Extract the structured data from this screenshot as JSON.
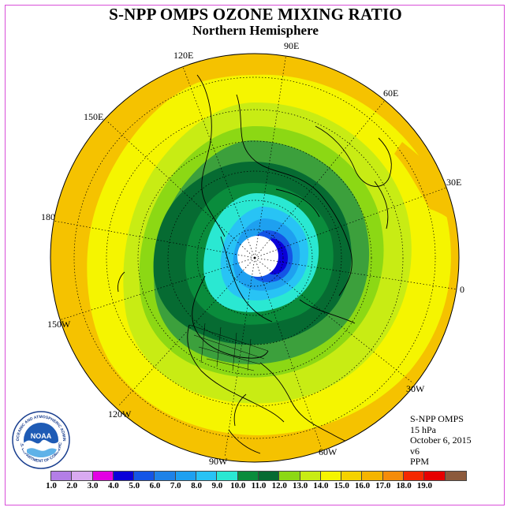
{
  "title": "S-NPP OMPS OZONE MIXING RATIO",
  "subtitle": "Northern Hemisphere",
  "longitude_labels": {
    "lon_90e": "90E",
    "lon_120e": "120E",
    "lon_60e": "60E",
    "lon_150e": "150E",
    "lon_30e": "30E",
    "lon_180": "180",
    "lon_0": "0",
    "lon_150w": "150W",
    "lon_30w": "30W",
    "lon_120w": "120W",
    "lon_60w": "60W",
    "lon_90w": "90W"
  },
  "info": {
    "instrument": "S-NPP OMPS",
    "level": "15 hPa",
    "date": "October 6, 2015",
    "version": "v6",
    "units": "PPM"
  },
  "logo": {
    "text": "NOAA",
    "ring_text": "NATIONAL OCEANIC AND ATMOSPHERIC ADMINISTRATION",
    "ring_text_bottom": "U.S. DEPARTMENT OF COMMERCE"
  },
  "colorbar": {
    "ticks": [
      "1.0",
      "2.0",
      "3.0",
      "4.0",
      "5.0",
      "6.0",
      "7.0",
      "8.0",
      "9.0",
      "10.0",
      "11.0",
      "12.0",
      "13.0",
      "14.0",
      "15.0",
      "16.0",
      "17.0",
      "18.0",
      "19.0"
    ],
    "colors": [
      "#b37ee6",
      "#d8aaf0",
      "#e300e3",
      "#0a00d9",
      "#1455e6",
      "#1e82e8",
      "#1ea0f0",
      "#28c3f5",
      "#2ae8d2",
      "#0a8c3c",
      "#066b32",
      "#8cd814",
      "#c8ec14",
      "#f5f500",
      "#f5d200",
      "#f5b400",
      "#f58c0a",
      "#f52800",
      "#e60000",
      "#8c5a3c"
    ]
  },
  "map": {
    "projection": "north polar stereographic",
    "field": "ozone mixing ratio",
    "levels_ppm": [
      {
        "level": "14.0-15.0",
        "color": "#f5c800"
      },
      {
        "level": "13.0-14.0",
        "color": "#f5f500"
      },
      {
        "level": "12.0-13.0",
        "color": "#c8ec14"
      },
      {
        "level": "11.0-12.0",
        "color": "#8cd814"
      },
      {
        "level": "10.0-11.0",
        "color": "#066b32"
      },
      {
        "level": "9.0-10.0",
        "color": "#0a8c3c"
      },
      {
        "level": "8.0-9.0",
        "color": "#2ae8d2"
      },
      {
        "level": "7.0-8.0",
        "color": "#28c3f5"
      },
      {
        "level": "6.0-7.0",
        "color": "#1ea0f0"
      },
      {
        "level": "5.0-6.0",
        "color": "#1455e6"
      },
      {
        "level": "4.0-5.0",
        "color": "#0a00d9"
      }
    ]
  }
}
